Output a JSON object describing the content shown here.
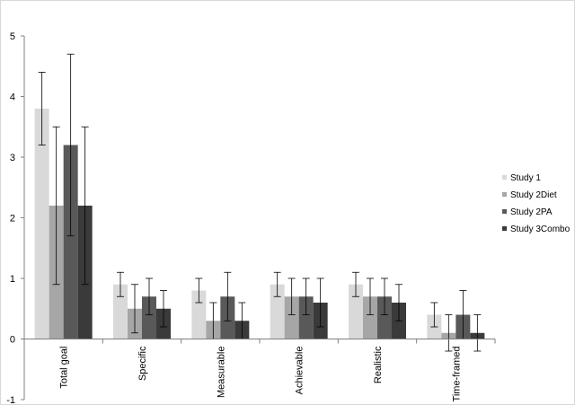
{
  "chart_data": {
    "type": "bar",
    "title": "",
    "xlabel": "",
    "ylabel": "",
    "ylim": [
      -1,
      5
    ],
    "yticks": [
      -1,
      0,
      1,
      2,
      3,
      4,
      5
    ],
    "grid": false,
    "legend_position": "right",
    "categories": [
      "Total goal",
      "Specific",
      "Measurable",
      "Achievable",
      "Realistic",
      "Time-framed"
    ],
    "series": [
      {
        "name": "Study 1",
        "color": "#d9d9d9",
        "values": [
          3.8,
          0.9,
          0.8,
          0.9,
          0.9,
          0.4
        ],
        "errors": [
          0.6,
          0.2,
          0.2,
          0.2,
          0.2,
          0.2
        ]
      },
      {
        "name": "Study 2Diet",
        "color": "#a6a6a6",
        "values": [
          2.2,
          0.5,
          0.3,
          0.7,
          0.7,
          0.1
        ],
        "errors": [
          1.3,
          0.4,
          0.3,
          0.3,
          0.3,
          0.3
        ]
      },
      {
        "name": "Study 2PA",
        "color": "#595959",
        "values": [
          3.2,
          0.7,
          0.7,
          0.7,
          0.7,
          0.4
        ],
        "errors": [
          1.5,
          0.3,
          0.4,
          0.3,
          0.3,
          0.4
        ]
      },
      {
        "name": "Study 3Combo",
        "color": "#3a3a3a",
        "values": [
          2.2,
          0.5,
          0.3,
          0.6,
          0.6,
          0.1
        ],
        "errors": [
          1.3,
          0.3,
          0.3,
          0.4,
          0.3,
          0.3
        ]
      }
    ]
  }
}
